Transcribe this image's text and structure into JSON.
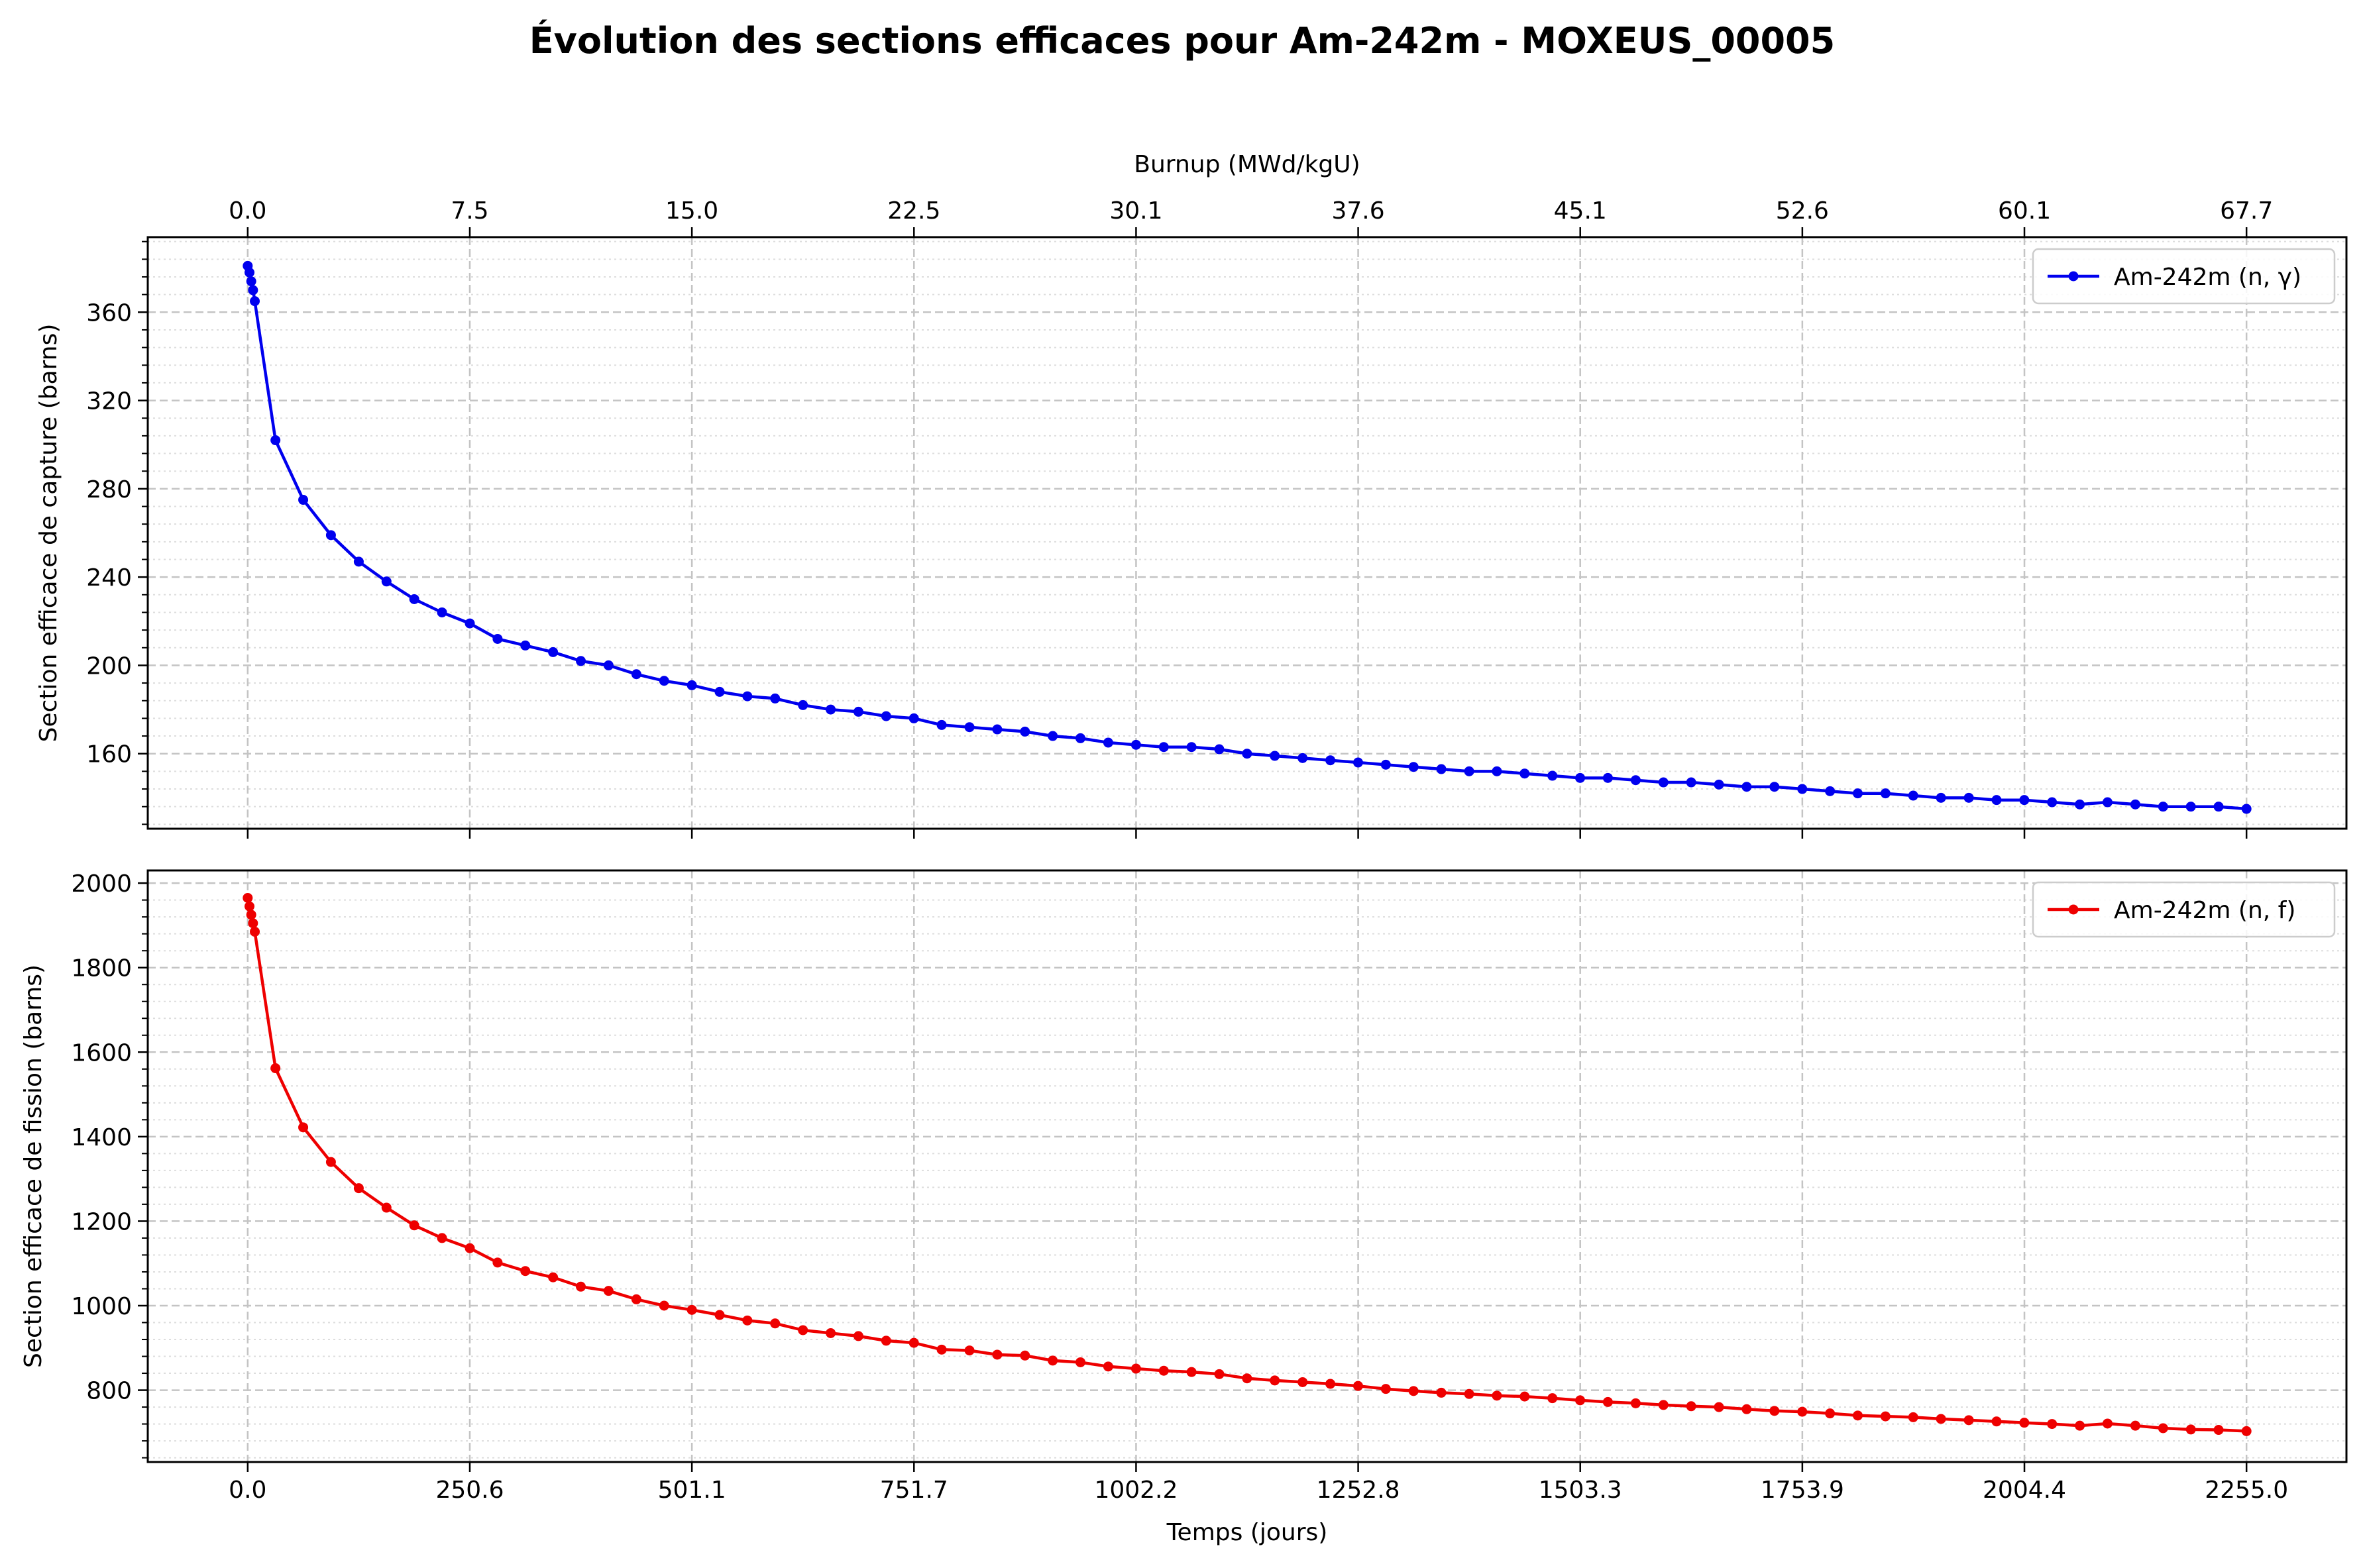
{
  "figure": {
    "title": "Évolution des sections efficaces pour Am-242m - MOXEUS_00005"
  },
  "chart_data": [
    {
      "type": "line",
      "ylabel": "Section efficace de capture (barns)",
      "top_xlabel": "Burnup (MWd/kgU)",
      "top_xticks": [
        "0.0",
        "7.5",
        "15.0",
        "22.5",
        "30.1",
        "37.6",
        "45.1",
        "52.6",
        "60.1",
        "67.7"
      ],
      "yticks": [
        160,
        200,
        240,
        280,
        320,
        360
      ],
      "ylim": [
        126,
        394
      ],
      "xlim": [
        -112.75,
        2367.75
      ],
      "grid": true,
      "legend_position": "top-right",
      "color": "#0000ee",
      "series": [
        {
          "name": "Am-242m (n, γ)",
          "x": [
            0,
            2,
            4,
            6,
            8,
            31.3,
            62.6,
            93.9,
            125.3,
            156.6,
            187.9,
            219.2,
            250.6,
            281.9,
            313.2,
            344.5,
            375.8,
            407.1,
            438.5,
            469.8,
            501.1,
            532.4,
            563.7,
            595,
            626.4,
            657.7,
            689,
            720.3,
            751.6,
            782.9,
            814.3,
            845.6,
            876.9,
            908.2,
            939.5,
            970.8,
            1002.2,
            1033.5,
            1064.8,
            1096.1,
            1127.4,
            1158.7,
            1190.1,
            1221.4,
            1252.7,
            1284,
            1315.3,
            1346.6,
            1378,
            1409.3,
            1440.6,
            1471.9,
            1503.2,
            1534.5,
            1565.9,
            1597.2,
            1628.5,
            1659.8,
            1691.1,
            1722.4,
            1753.8,
            1785.1,
            1816.4,
            1847.7,
            1879,
            1910.3,
            1941.7,
            1973,
            2004.3,
            2035.6,
            2066.9,
            2098.2,
            2129.6,
            2160.9,
            2192.2,
            2223.5,
            2255
          ],
          "y": [
            381,
            378,
            374,
            370,
            365,
            302,
            275,
            259,
            247,
            238,
            230,
            224,
            219,
            212,
            209,
            206,
            202,
            200,
            196,
            193,
            191,
            188,
            186,
            185,
            182,
            180,
            179,
            177,
            176,
            173,
            172,
            171,
            170,
            168,
            167,
            165,
            164,
            163,
            163,
            162,
            160,
            159,
            158,
            157,
            156,
            155,
            154,
            153,
            152,
            152,
            151,
            150,
            149,
            149,
            148,
            147,
            147,
            146,
            145,
            145,
            144,
            143,
            142,
            142,
            141,
            140,
            140,
            139,
            139,
            138,
            137,
            138,
            137,
            136,
            136,
            136,
            135
          ]
        }
      ]
    },
    {
      "type": "line",
      "ylabel": "Section efficace de fission (barns)",
      "xlabel": "Temps (jours)",
      "xticks": [
        "0.0",
        "250.6",
        "501.1",
        "751.7",
        "1002.2",
        "1252.8",
        "1503.3",
        "1753.9",
        "2004.4",
        "2255.0"
      ],
      "yticks": [
        800,
        1000,
        1200,
        1400,
        1600,
        1800,
        2000
      ],
      "ylim": [
        630,
        2030
      ],
      "xlim": [
        -112.75,
        2367.75
      ],
      "grid": true,
      "legend_position": "top-right",
      "color": "#ee0000",
      "series": [
        {
          "name": "Am-242m (n, f)",
          "x": [
            0,
            2,
            4,
            6,
            8,
            31.3,
            62.6,
            93.9,
            125.3,
            156.6,
            187.9,
            219.2,
            250.6,
            281.9,
            313.2,
            344.5,
            375.8,
            407.1,
            438.5,
            469.8,
            501.1,
            532.4,
            563.7,
            595,
            626.4,
            657.7,
            689,
            720.3,
            751.6,
            782.9,
            814.3,
            845.6,
            876.9,
            908.2,
            939.5,
            970.8,
            1002.2,
            1033.5,
            1064.8,
            1096.1,
            1127.4,
            1158.7,
            1190.1,
            1221.4,
            1252.7,
            1284,
            1315.3,
            1346.6,
            1378,
            1409.3,
            1440.6,
            1471.9,
            1503.2,
            1534.5,
            1565.9,
            1597.2,
            1628.5,
            1659.8,
            1691.1,
            1722.4,
            1753.8,
            1785.1,
            1816.4,
            1847.7,
            1879,
            1910.3,
            1941.7,
            1973,
            2004.3,
            2035.6,
            2066.9,
            2098.2,
            2129.6,
            2160.9,
            2192.2,
            2223.5,
            2255
          ],
          "y": [
            1965,
            1945,
            1925,
            1905,
            1885,
            1562,
            1422,
            1340,
            1278,
            1232,
            1190,
            1160,
            1136,
            1102,
            1082,
            1067,
            1045,
            1035,
            1015,
            1000,
            990,
            978,
            965,
            958,
            942,
            935,
            928,
            917,
            912,
            896,
            894,
            884,
            882,
            870,
            866,
            856,
            851,
            846,
            843,
            838,
            828,
            823,
            819,
            815,
            810,
            803,
            798,
            794,
            791,
            787,
            785,
            781,
            776,
            772,
            769,
            765,
            762,
            760,
            755,
            751,
            749,
            745,
            740,
            738,
            736,
            732,
            729,
            726,
            723,
            720,
            716,
            721,
            716,
            710,
            707,
            706,
            703
          ]
        }
      ]
    }
  ]
}
